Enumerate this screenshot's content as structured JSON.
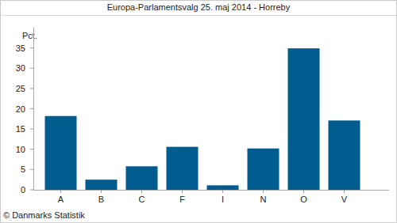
{
  "chart_data": {
    "type": "bar",
    "title": "Europa-Parlamentsvalg 25. maj 2014 - Horreby",
    "y_label": "Pct.",
    "source": "© Danmarks Statistik",
    "categories": [
      "A",
      "B",
      "C",
      "F",
      "I",
      "N",
      "O",
      "V"
    ],
    "values": [
      18.2,
      2.5,
      5.8,
      10.6,
      1.1,
      10.2,
      34.9,
      17.1
    ],
    "color": "#005b8e",
    "ylim": [
      0,
      40
    ],
    "yticks": [
      0,
      5,
      10,
      15,
      20,
      25,
      30,
      35
    ],
    "grid": false
  }
}
